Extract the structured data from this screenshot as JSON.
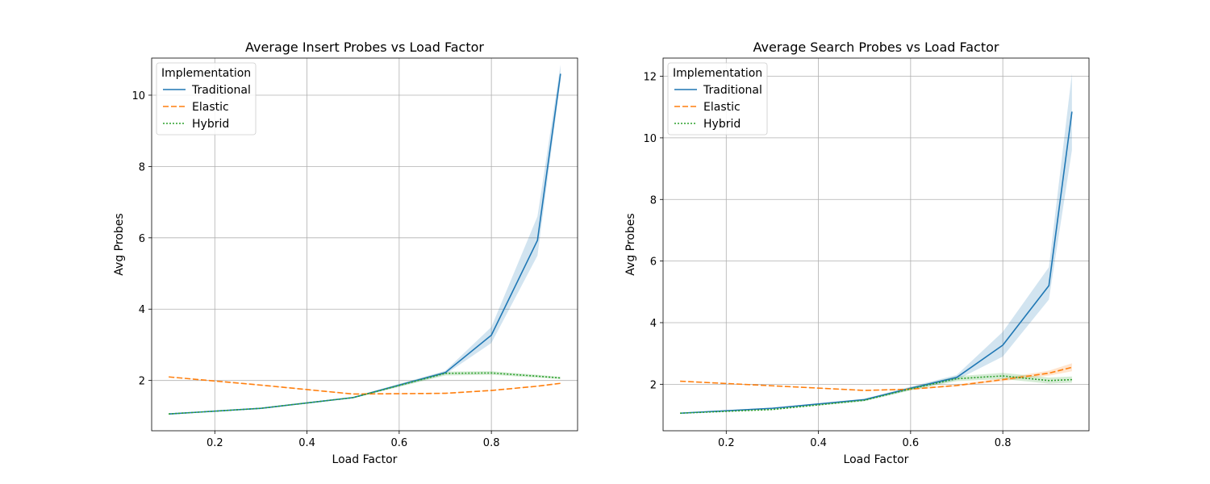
{
  "chart_data": [
    {
      "type": "line",
      "title": "Average Insert Probes vs Load Factor",
      "xlabel": "Load Factor",
      "ylabel": "Avg Probes",
      "xlim": [
        0.063,
        0.987
      ],
      "ylim": [
        0.59,
        11.04
      ],
      "xticks": [
        0.2,
        0.4,
        0.6,
        0.8
      ],
      "xtick_labels": [
        "0.2",
        "0.4",
        "0.6",
        "0.8"
      ],
      "yticks": [
        2,
        4,
        6,
        8,
        10
      ],
      "ytick_labels": [
        "2",
        "4",
        "6",
        "8",
        "10"
      ],
      "grid": true,
      "legend": {
        "title": "Implementation",
        "position": "top-left",
        "entries": [
          "Traditional",
          "Elastic",
          "Hybrid"
        ]
      },
      "x": [
        0.1,
        0.3,
        0.5,
        0.7,
        0.8,
        0.9,
        0.95
      ],
      "series": [
        {
          "name": "Traditional",
          "color": "#1f77b4",
          "dash": "solid",
          "values": [
            1.06,
            1.22,
            1.52,
            2.22,
            3.27,
            5.93,
            10.6
          ],
          "ci_lower": [
            1.05,
            1.21,
            1.5,
            2.17,
            3.05,
            5.5,
            10.4
          ],
          "ci_upper": [
            1.07,
            1.23,
            1.54,
            2.27,
            3.5,
            6.6,
            10.85
          ]
        },
        {
          "name": "Elastic",
          "color": "#ff7f0e",
          "dash": "dashed",
          "values": [
            2.1,
            1.87,
            1.62,
            1.64,
            1.72,
            1.84,
            1.92
          ],
          "ci_lower": [
            2.09,
            1.86,
            1.61,
            1.63,
            1.71,
            1.83,
            1.91
          ],
          "ci_upper": [
            2.11,
            1.88,
            1.63,
            1.65,
            1.73,
            1.85,
            1.93
          ]
        },
        {
          "name": "Hybrid",
          "color": "#2ca02c",
          "dash": "dotted",
          "values": [
            1.06,
            1.22,
            1.52,
            2.2,
            2.21,
            2.12,
            2.07
          ],
          "ci_lower": [
            1.05,
            1.21,
            1.5,
            2.14,
            2.16,
            2.08,
            2.04
          ],
          "ci_upper": [
            1.07,
            1.23,
            1.54,
            2.25,
            2.26,
            2.16,
            2.1
          ]
        }
      ]
    },
    {
      "type": "line",
      "title": "Average Search Probes vs Load Factor",
      "xlabel": "Load Factor",
      "ylabel": "Avg Probes",
      "xlim": [
        0.063,
        0.987
      ],
      "ylim": [
        0.49,
        12.59
      ],
      "xticks": [
        0.2,
        0.4,
        0.6,
        0.8
      ],
      "xtick_labels": [
        "0.2",
        "0.4",
        "0.6",
        "0.8"
      ],
      "yticks": [
        2,
        4,
        6,
        8,
        10,
        12
      ],
      "ytick_labels": [
        "2",
        "4",
        "6",
        "8",
        "10",
        "12"
      ],
      "grid": true,
      "legend": {
        "title": "Implementation",
        "position": "top-left",
        "entries": [
          "Traditional",
          "Elastic",
          "Hybrid"
        ]
      },
      "x": [
        0.1,
        0.3,
        0.5,
        0.6,
        0.7,
        0.8,
        0.9,
        0.95
      ],
      "series": [
        {
          "name": "Traditional",
          "color": "#1f77b4",
          "dash": "solid",
          "values": [
            1.06,
            1.22,
            1.5,
            1.87,
            2.22,
            3.27,
            5.2,
            10.85
          ],
          "ci_lower": [
            1.05,
            1.2,
            1.47,
            1.82,
            2.14,
            2.9,
            4.75,
            9.6
          ],
          "ci_upper": [
            1.07,
            1.24,
            1.53,
            1.92,
            2.3,
            3.7,
            5.8,
            12.1
          ]
        },
        {
          "name": "Elastic",
          "color": "#ff7f0e",
          "dash": "dashed",
          "values": [
            2.1,
            1.95,
            1.8,
            1.84,
            1.96,
            2.15,
            2.36,
            2.55
          ],
          "ci_lower": [
            2.09,
            1.94,
            1.79,
            1.82,
            1.93,
            2.1,
            2.28,
            2.42
          ],
          "ci_upper": [
            2.11,
            1.96,
            1.81,
            1.86,
            1.99,
            2.2,
            2.44,
            2.68
          ]
        },
        {
          "name": "Hybrid",
          "color": "#2ca02c",
          "dash": "dotted",
          "values": [
            1.06,
            1.18,
            1.48,
            1.85,
            2.18,
            2.27,
            2.12,
            2.15
          ],
          "ci_lower": [
            1.05,
            1.16,
            1.45,
            1.8,
            2.1,
            2.17,
            2.02,
            2.05
          ],
          "ci_upper": [
            1.07,
            1.2,
            1.51,
            1.9,
            2.26,
            2.37,
            2.22,
            2.25
          ]
        }
      ]
    }
  ]
}
